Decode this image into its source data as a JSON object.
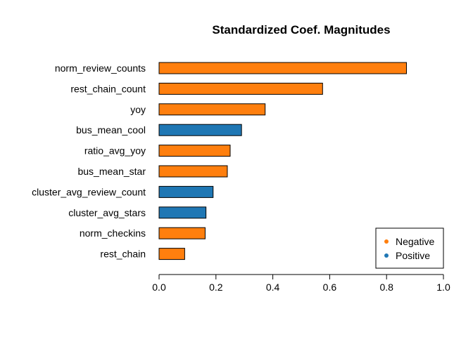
{
  "chart_data": {
    "type": "bar",
    "orientation": "horizontal",
    "title": "Standardized Coef. Magnitudes",
    "xlabel": "",
    "ylabel": "",
    "xlim": [
      0,
      1
    ],
    "xticks": [
      "0.0",
      "0.2",
      "0.4",
      "0.6",
      "0.8",
      "1.0"
    ],
    "grid": false,
    "bars": [
      {
        "label": "norm_review_counts",
        "value": 0.87,
        "sign": "Negative"
      },
      {
        "label": "rest_chain_count",
        "value": 0.575,
        "sign": "Negative"
      },
      {
        "label": "yoy",
        "value": 0.373,
        "sign": "Negative"
      },
      {
        "label": "bus_mean_cool",
        "value": 0.29,
        "sign": "Positive"
      },
      {
        "label": "ratio_avg_yoy",
        "value": 0.25,
        "sign": "Negative"
      },
      {
        "label": "bus_mean_star",
        "value": 0.24,
        "sign": "Negative"
      },
      {
        "label": "cluster_avg_review_count",
        "value": 0.19,
        "sign": "Positive"
      },
      {
        "label": "cluster_avg_stars",
        "value": 0.165,
        "sign": "Positive"
      },
      {
        "label": "norm_checkins",
        "value": 0.162,
        "sign": "Negative"
      },
      {
        "label": "rest_chain",
        "value": 0.09,
        "sign": "Negative"
      }
    ],
    "legend": {
      "placement": "bottom-right",
      "entries": [
        {
          "label": "Negative",
          "color": "#ff7f0e"
        },
        {
          "label": "Positive",
          "color": "#1f77b4"
        }
      ]
    }
  }
}
